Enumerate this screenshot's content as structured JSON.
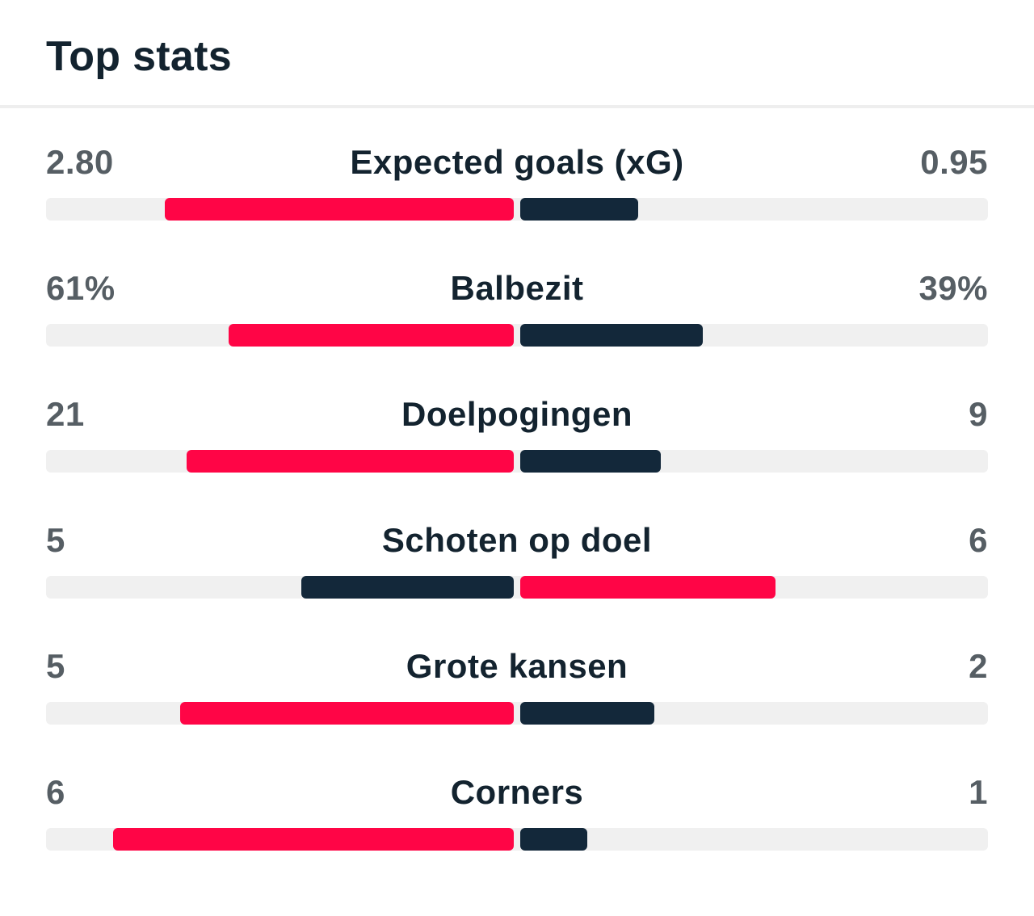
{
  "header": {
    "title": "Top stats"
  },
  "colors": {
    "leader": "#ff0546",
    "trailer": "#13283a",
    "track": "#f0f0f0",
    "label": "#13232f",
    "value": "#565e64"
  },
  "stats": [
    {
      "label": "Expected goals (xG)",
      "home": "2.80",
      "away": "0.95",
      "home_bar": 0.746,
      "away_bar": 0.253,
      "home_leads": true
    },
    {
      "label": "Balbezit",
      "home": "61%",
      "away": "39%",
      "home_bar": 0.61,
      "away_bar": 0.39,
      "home_leads": true
    },
    {
      "label": "Doelpogingen",
      "home": "21",
      "away": "9",
      "home_bar": 0.7,
      "away_bar": 0.3,
      "home_leads": true
    },
    {
      "label": "Schoten op doel",
      "home": "5",
      "away": "6",
      "home_bar": 0.455,
      "away_bar": 0.545,
      "home_leads": false
    },
    {
      "label": "Grote kansen",
      "home": "5",
      "away": "2",
      "home_bar": 0.714,
      "away_bar": 0.286,
      "home_leads": true
    },
    {
      "label": "Corners",
      "home": "6",
      "away": "1",
      "home_bar": 0.857,
      "away_bar": 0.143,
      "home_leads": true
    }
  ]
}
